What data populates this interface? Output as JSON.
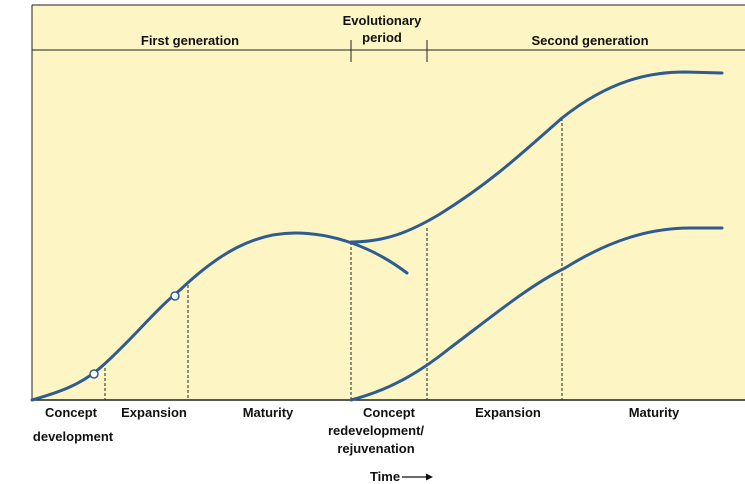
{
  "header": {
    "periods": [
      {
        "lines": [
          "First generation"
        ]
      },
      {
        "lines": [
          "Evolutionary",
          "period"
        ]
      },
      {
        "lines": [
          "Second generation"
        ]
      }
    ]
  },
  "stages": [
    {
      "lines": [
        "Concept",
        "development"
      ]
    },
    {
      "lines": [
        "Expansion"
      ]
    },
    {
      "lines": [
        "Maturity"
      ]
    },
    {
      "lines": [
        "Concept",
        "redevelopment/",
        "rejuvenation"
      ]
    },
    {
      "lines": [
        "Expansion"
      ]
    },
    {
      "lines": [
        "Maturity"
      ]
    }
  ],
  "axis_label": "Time"
}
